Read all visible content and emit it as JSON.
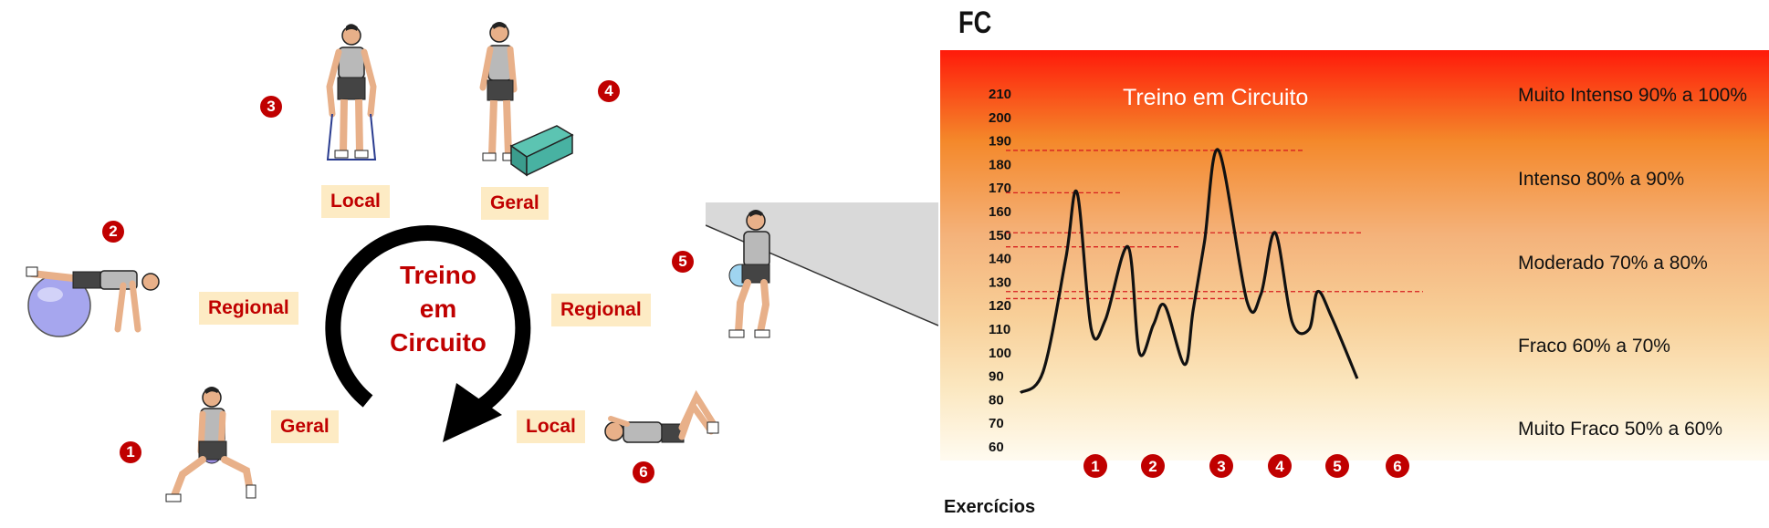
{
  "circuit": {
    "title_lines": [
      "Treino",
      "em",
      "Circuito"
    ],
    "stations": [
      {
        "number": "1",
        "label": "Geral"
      },
      {
        "number": "2",
        "label": "Regional"
      },
      {
        "number": "3",
        "label": "Local"
      },
      {
        "number": "4",
        "label": "Geral"
      },
      {
        "number": "5",
        "label": "Regional"
      },
      {
        "number": "6",
        "label": "Local"
      }
    ],
    "colors": {
      "accent": "#c00000",
      "tag_bg": "#fdebc4",
      "arrow": "#000000"
    }
  },
  "chart_data": {
    "type": "line",
    "title": "Treino em Circuito",
    "ylabel": "FC",
    "xlabel": "Exercícios",
    "yticks": [
      60,
      70,
      80,
      90,
      100,
      110,
      120,
      130,
      140,
      150,
      160,
      170,
      180,
      190,
      200,
      210
    ],
    "ylim": [
      60,
      210
    ],
    "x_markers": [
      "1",
      "2",
      "3",
      "4",
      "5",
      "6"
    ],
    "peaks": [
      {
        "exercise": "1",
        "value": 168
      },
      {
        "exercise": "2",
        "value": 145
      },
      {
        "exercise": "3",
        "value": 123
      },
      {
        "exercise": "4",
        "value": 186
      },
      {
        "exercise": "5",
        "value": 151
      },
      {
        "exercise": "6",
        "value": 126
      }
    ],
    "curve": {
      "x": [
        0,
        0.4,
        0.8,
        1.0,
        1.25,
        1.5,
        1.9,
        2.1,
        2.35,
        2.55,
        2.9,
        3.05,
        3.25,
        3.5,
        4.0,
        4.25,
        4.5,
        4.8,
        5.1,
        5.25,
        5.5,
        5.95
      ],
      "y": [
        83,
        92,
        140,
        168,
        110,
        114,
        145,
        100,
        112,
        120,
        95,
        118,
        147,
        186,
        122,
        125,
        151,
        113,
        110,
        126,
        115,
        89
      ]
    },
    "zones": [
      "Muito Intenso 90% a 100%",
      "Intenso  80% a 90%",
      "Moderado 70% a 80%",
      "Fraco 60% a 70%",
      "Muito Fraco 50% a 60%"
    ],
    "colors": {
      "line": "#111111",
      "dashed": "#d62020",
      "marker": "#c00000"
    }
  }
}
